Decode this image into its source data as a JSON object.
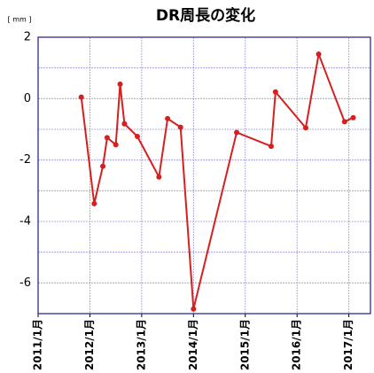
{
  "chart_data": {
    "type": "line",
    "title": "DR周長の変化",
    "y_unit": "[ mm ]",
    "x": [
      "2011-11",
      "2012-02",
      "2012-04",
      "2012-05",
      "2012-07",
      "2012-08",
      "2012-09",
      "2012-12",
      "2013-05",
      "2013-07",
      "2013-10",
      "2014-01",
      "2014-11",
      "2015-07",
      "2015-08",
      "2016-03",
      "2016-06",
      "2016-12",
      "2017-02"
    ],
    "series": [
      {
        "name": "DR周長",
        "color": "#d71f1f",
        "values": [
          0.05,
          -3.42,
          -2.2,
          -1.27,
          -1.5,
          0.47,
          -0.82,
          -1.23,
          -2.55,
          -0.65,
          -0.93,
          -6.85,
          -1.1,
          -1.55,
          0.22,
          -0.95,
          1.45,
          -0.75,
          -0.62
        ]
      }
    ],
    "xlim": [
      "2011-01",
      "2017-06"
    ],
    "xticks": [
      {
        "value": "2011-01",
        "label": "2011/1月"
      },
      {
        "value": "2012-01",
        "label": "2012/1月"
      },
      {
        "value": "2013-01",
        "label": "2013/1月"
      },
      {
        "value": "2014-01",
        "label": "2014/1月"
      },
      {
        "value": "2015-01",
        "label": "2015/1月"
      },
      {
        "value": "2016-01",
        "label": "2016/1月"
      },
      {
        "value": "2017-01",
        "label": "2017/1月"
      }
    ],
    "ylim": [
      -7,
      2
    ],
    "yticks": [
      -6,
      -4,
      -2,
      0,
      2
    ],
    "yminorticks": [
      -7,
      -5,
      -3,
      -1,
      1
    ],
    "grid": true
  }
}
